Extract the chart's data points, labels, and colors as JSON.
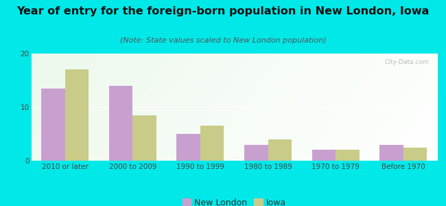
{
  "categories": [
    "2010 or later",
    "2000 to 2009",
    "1990 to 1999",
    "1980 to 1989",
    "1970 to 1979",
    "Before 1970"
  ],
  "new_london": [
    13.5,
    14.0,
    5.0,
    3.0,
    2.0,
    3.0
  ],
  "iowa": [
    17.0,
    8.5,
    6.5,
    4.0,
    2.0,
    2.5
  ],
  "new_london_color": "#c8a0d0",
  "iowa_color": "#c8cc88",
  "title": "Year of entry for the foreign-born population in New London, Iowa",
  "subtitle": "(Note: State values scaled to New London population)",
  "legend_new_london": "New London",
  "legend_iowa": "Iowa",
  "ylim": [
    0,
    20
  ],
  "yticks": [
    0,
    10,
    20
  ],
  "bg_outer": "#00e8e8",
  "bar_width": 0.35,
  "title_fontsize": 11.5,
  "subtitle_fontsize": 8,
  "tick_fontsize": 7.5,
  "legend_fontsize": 9
}
